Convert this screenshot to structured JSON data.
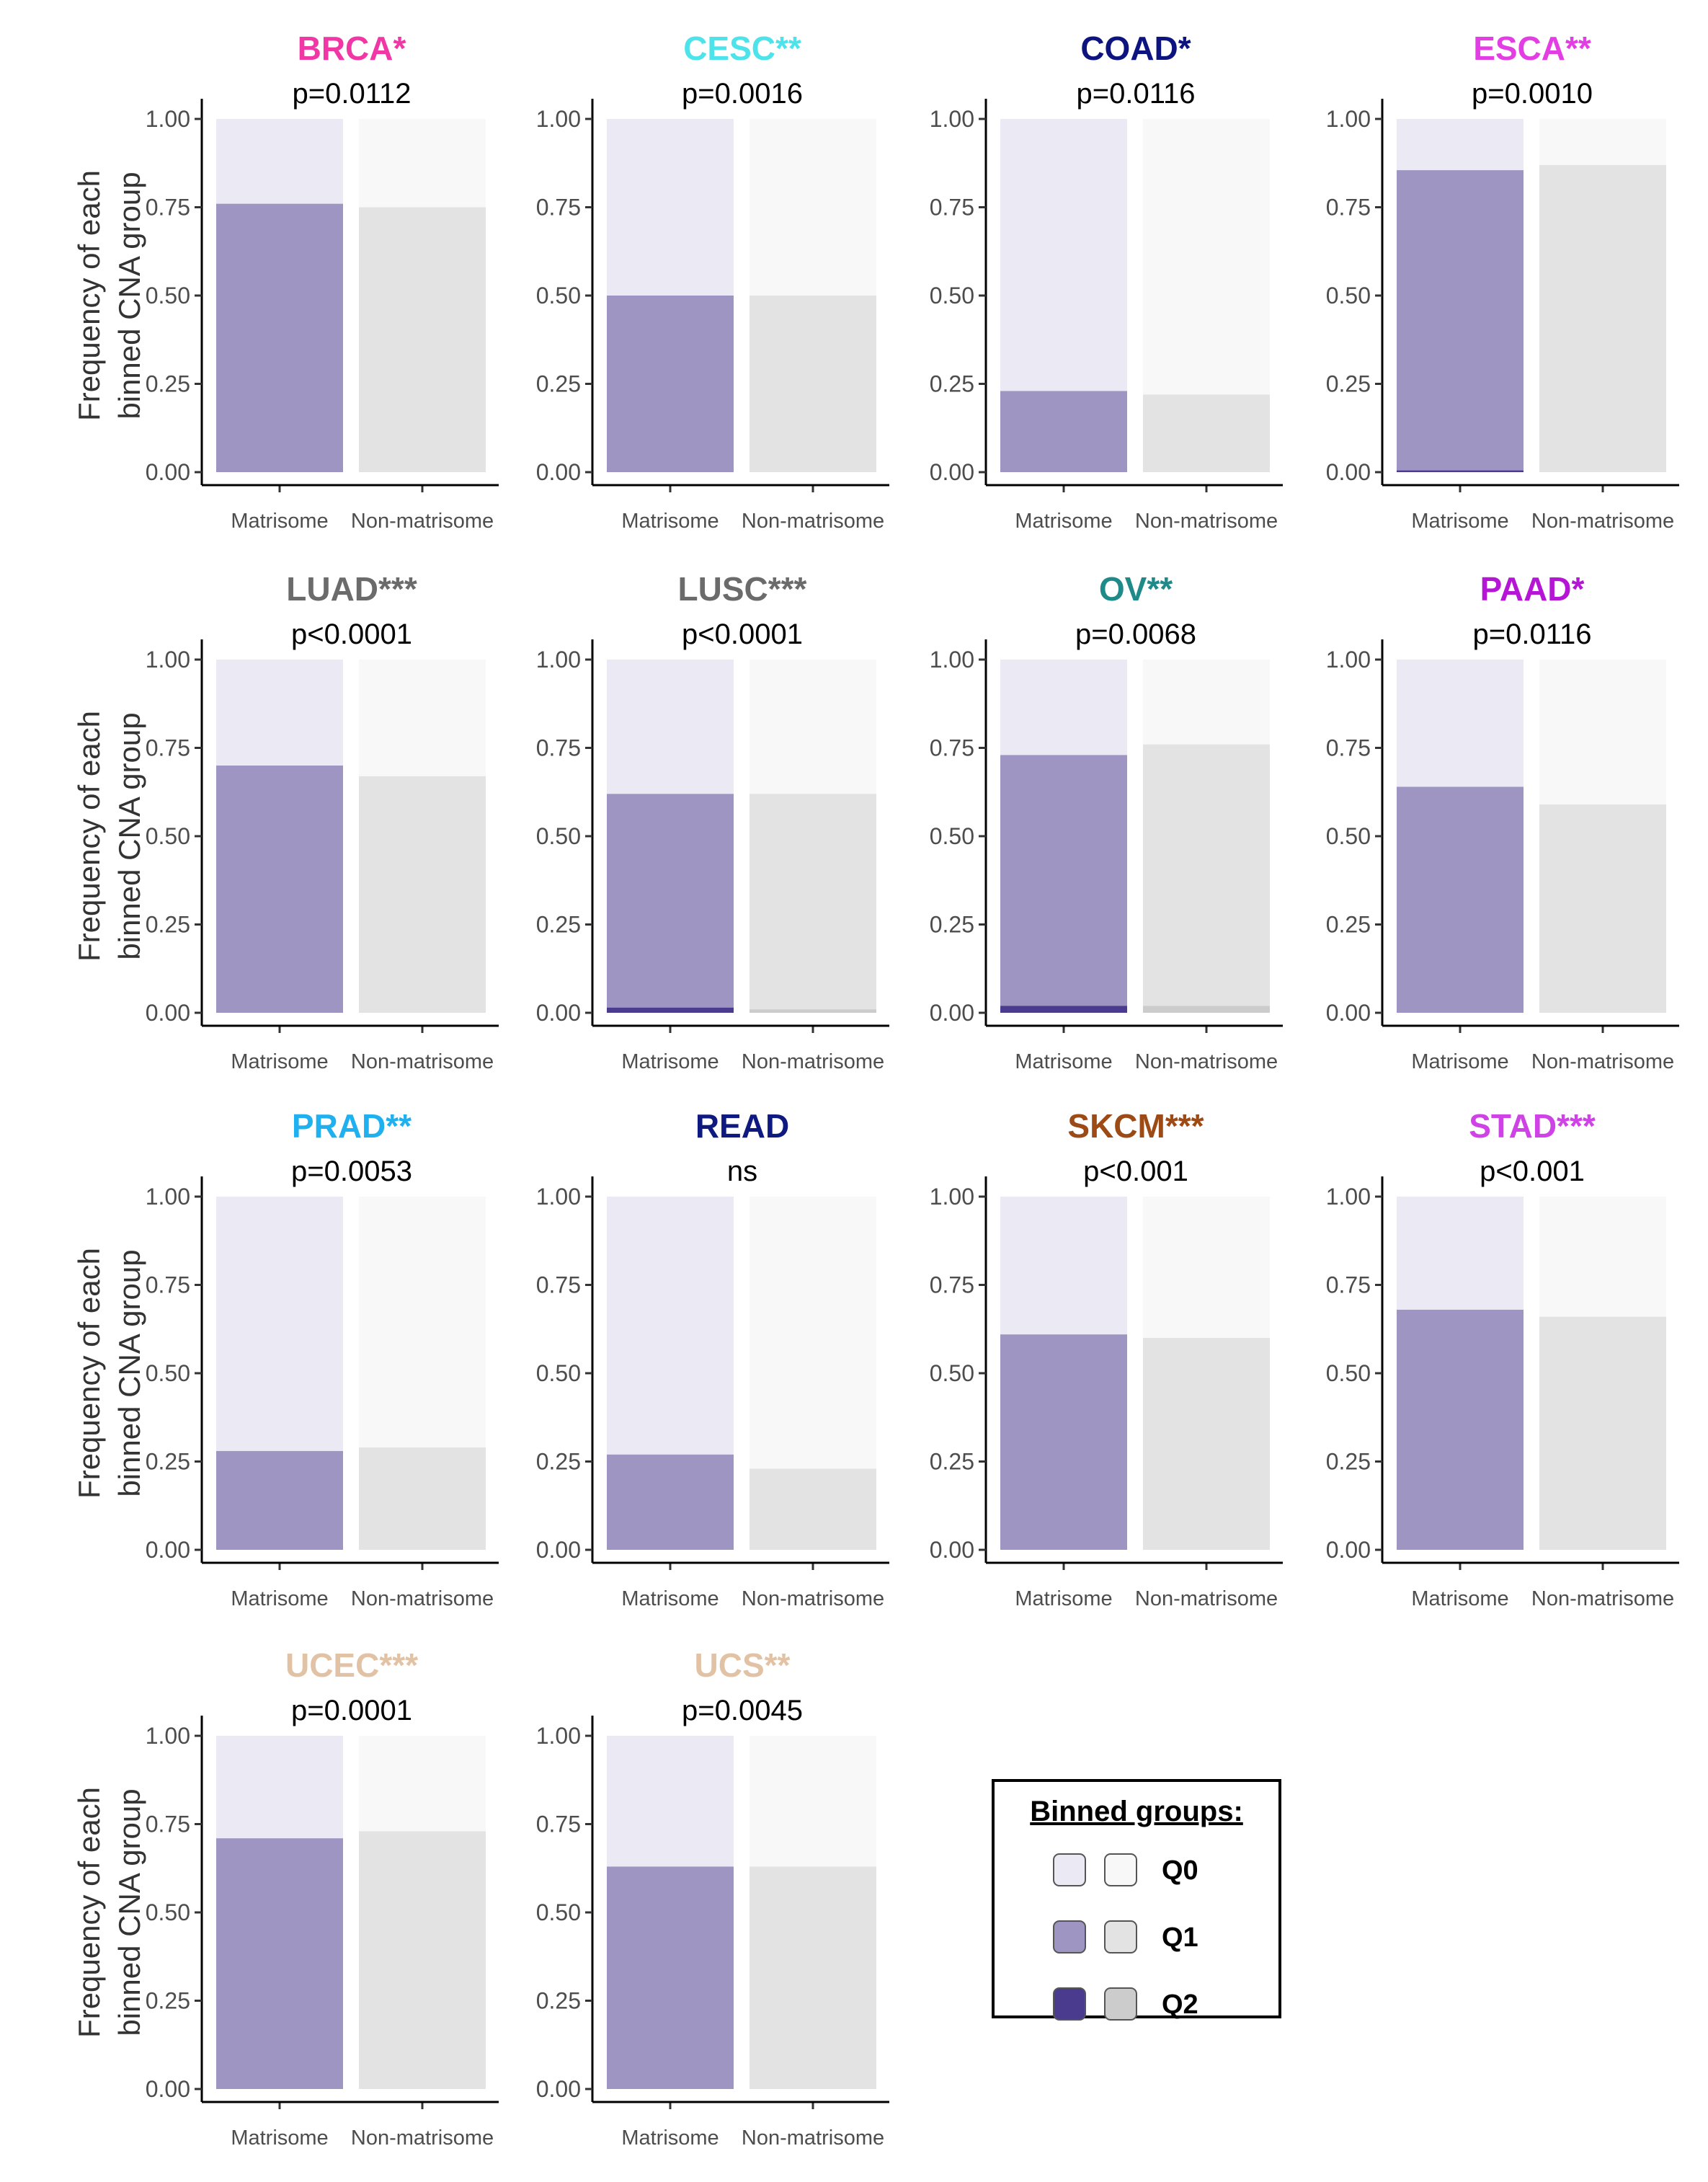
{
  "figure": {
    "y_axis_label_line1": "Frequency of each",
    "y_axis_label_line2": "binned CNA group"
  },
  "colors": {
    "matrisome": {
      "Q0": "#ebe9f4",
      "Q1": "#9f95c2",
      "Q2": "#4b3b8f"
    },
    "nonmatrisome": {
      "Q0": "#f8f8f8",
      "Q1": "#e3e3e3",
      "Q2": "#cccccc"
    }
  },
  "legend": {
    "title": "Binned groups:",
    "items": [
      {
        "label": "Q0",
        "matrisome_color": "#ebe9f4",
        "nonmatrisome_color": "#f8f8f8"
      },
      {
        "label": "Q1",
        "matrisome_color": "#9f95c2",
        "nonmatrisome_color": "#e3e3e3"
      },
      {
        "label": "Q2",
        "matrisome_color": "#4b3b8f",
        "nonmatrisome_color": "#cccccc"
      }
    ]
  },
  "chart_data": [
    {
      "type": "bar",
      "stacked": true,
      "title": "BRCA",
      "stars": "*",
      "title_color": "#f037a5",
      "pvalue": "p=0.0112",
      "categories": [
        "Matrisome",
        "Non-matrisome"
      ],
      "ylim": [
        0,
        1
      ],
      "yticks": [
        "0.00",
        "0.25",
        "0.50",
        "0.75",
        "1.00"
      ],
      "series": [
        {
          "name": "Q2",
          "values": [
            0.0,
            0.0
          ]
        },
        {
          "name": "Q1",
          "values": [
            0.76,
            0.75
          ]
        },
        {
          "name": "Q0",
          "values": [
            0.24,
            0.25
          ]
        }
      ]
    },
    {
      "type": "bar",
      "stacked": true,
      "title": "CESC",
      "stars": "**",
      "title_color": "#4de3ea",
      "pvalue": "p=0.0016",
      "categories": [
        "Matrisome",
        "Non-matrisome"
      ],
      "ylim": [
        0,
        1
      ],
      "yticks": [
        "0.00",
        "0.25",
        "0.50",
        "0.75",
        "1.00"
      ],
      "series": [
        {
          "name": "Q2",
          "values": [
            0.0,
            0.0
          ]
        },
        {
          "name": "Q1",
          "values": [
            0.5,
            0.5
          ]
        },
        {
          "name": "Q0",
          "values": [
            0.5,
            0.5
          ]
        }
      ]
    },
    {
      "type": "bar",
      "stacked": true,
      "title": "COAD",
      "stars": "*",
      "title_color": "#0d1480",
      "pvalue": "p=0.0116",
      "categories": [
        "Matrisome",
        "Non-matrisome"
      ],
      "ylim": [
        0,
        1
      ],
      "yticks": [
        "0.00",
        "0.25",
        "0.50",
        "0.75",
        "1.00"
      ],
      "series": [
        {
          "name": "Q2",
          "values": [
            0.0,
            0.0
          ]
        },
        {
          "name": "Q1",
          "values": [
            0.23,
            0.22
          ]
        },
        {
          "name": "Q0",
          "values": [
            0.77,
            0.78
          ]
        }
      ]
    },
    {
      "type": "bar",
      "stacked": true,
      "title": "ESCA",
      "stars": "**",
      "title_color": "#e33ee3",
      "pvalue": "p=0.0010",
      "categories": [
        "Matrisome",
        "Non-matrisome"
      ],
      "ylim": [
        0,
        1
      ],
      "yticks": [
        "0.00",
        "0.25",
        "0.50",
        "0.75",
        "1.00"
      ],
      "series": [
        {
          "name": "Q2",
          "values": [
            0.005,
            0.0
          ]
        },
        {
          "name": "Q1",
          "values": [
            0.85,
            0.87
          ]
        },
        {
          "name": "Q0",
          "values": [
            0.145,
            0.13
          ]
        }
      ]
    },
    {
      "type": "bar",
      "stacked": true,
      "title": "LUAD",
      "stars": "***",
      "title_color": "#6b6b6b",
      "pvalue": "p<0.0001",
      "categories": [
        "Matrisome",
        "Non-matrisome"
      ],
      "ylim": [
        0,
        1
      ],
      "yticks": [
        "0.00",
        "0.25",
        "0.50",
        "0.75",
        "1.00"
      ],
      "series": [
        {
          "name": "Q2",
          "values": [
            0.0,
            0.0
          ]
        },
        {
          "name": "Q1",
          "values": [
            0.7,
            0.67
          ]
        },
        {
          "name": "Q0",
          "values": [
            0.3,
            0.33
          ]
        }
      ]
    },
    {
      "type": "bar",
      "stacked": true,
      "title": "LUSC",
      "stars": "***",
      "title_color": "#6b6b6b",
      "pvalue": "p<0.0001",
      "categories": [
        "Matrisome",
        "Non-matrisome"
      ],
      "ylim": [
        0,
        1
      ],
      "yticks": [
        "0.00",
        "0.25",
        "0.50",
        "0.75",
        "1.00"
      ],
      "series": [
        {
          "name": "Q2",
          "values": [
            0.015,
            0.01
          ]
        },
        {
          "name": "Q1",
          "values": [
            0.605,
            0.61
          ]
        },
        {
          "name": "Q0",
          "values": [
            0.38,
            0.38
          ]
        }
      ]
    },
    {
      "type": "bar",
      "stacked": true,
      "title": "OV",
      "stars": "**",
      "title_color": "#1f8a8a",
      "pvalue": "p=0.0068",
      "categories": [
        "Matrisome",
        "Non-matrisome"
      ],
      "ylim": [
        0,
        1
      ],
      "yticks": [
        "0.00",
        "0.25",
        "0.50",
        "0.75",
        "1.00"
      ],
      "series": [
        {
          "name": "Q2",
          "values": [
            0.02,
            0.02
          ]
        },
        {
          "name": "Q1",
          "values": [
            0.71,
            0.74
          ]
        },
        {
          "name": "Q0",
          "values": [
            0.27,
            0.24
          ]
        }
      ]
    },
    {
      "type": "bar",
      "stacked": true,
      "title": "PAAD",
      "stars": "*",
      "title_color": "#b516d6",
      "pvalue": "p=0.0116",
      "categories": [
        "Matrisome",
        "Non-matrisome"
      ],
      "ylim": [
        0,
        1
      ],
      "yticks": [
        "0.00",
        "0.25",
        "0.50",
        "0.75",
        "1.00"
      ],
      "series": [
        {
          "name": "Q2",
          "values": [
            0.0,
            0.0
          ]
        },
        {
          "name": "Q1",
          "values": [
            0.64,
            0.59
          ]
        },
        {
          "name": "Q0",
          "values": [
            0.36,
            0.41
          ]
        }
      ]
    },
    {
      "type": "bar",
      "stacked": true,
      "title": "PRAD",
      "stars": "**",
      "title_color": "#1fb0f0",
      "pvalue": "p=0.0053",
      "categories": [
        "Matrisome",
        "Non-matrisome"
      ],
      "ylim": [
        0,
        1
      ],
      "yticks": [
        "0.00",
        "0.25",
        "0.50",
        "0.75",
        "1.00"
      ],
      "series": [
        {
          "name": "Q2",
          "values": [
            0.0,
            0.0
          ]
        },
        {
          "name": "Q1",
          "values": [
            0.28,
            0.29
          ]
        },
        {
          "name": "Q0",
          "values": [
            0.72,
            0.71
          ]
        }
      ]
    },
    {
      "type": "bar",
      "stacked": true,
      "title": "READ",
      "stars": "",
      "title_color": "#0f1a80",
      "pvalue": "ns",
      "categories": [
        "Matrisome",
        "Non-matrisome"
      ],
      "ylim": [
        0,
        1
      ],
      "yticks": [
        "0.00",
        "0.25",
        "0.50",
        "0.75",
        "1.00"
      ],
      "series": [
        {
          "name": "Q2",
          "values": [
            0.0,
            0.0
          ]
        },
        {
          "name": "Q1",
          "values": [
            0.27,
            0.23
          ]
        },
        {
          "name": "Q0",
          "values": [
            0.73,
            0.77
          ]
        }
      ]
    },
    {
      "type": "bar",
      "stacked": true,
      "title": "SKCM",
      "stars": "***",
      "title_color": "#9c4a16",
      "pvalue": "p<0.001",
      "categories": [
        "Matrisome",
        "Non-matrisome"
      ],
      "ylim": [
        0,
        1
      ],
      "yticks": [
        "0.00",
        "0.25",
        "0.50",
        "0.75",
        "1.00"
      ],
      "series": [
        {
          "name": "Q2",
          "values": [
            0.0,
            0.0
          ]
        },
        {
          "name": "Q1",
          "values": [
            0.61,
            0.6
          ]
        },
        {
          "name": "Q0",
          "values": [
            0.39,
            0.4
          ]
        }
      ]
    },
    {
      "type": "bar",
      "stacked": true,
      "title": "STAD",
      "stars": "***",
      "title_color": "#cf42e6",
      "pvalue": "p<0.001",
      "categories": [
        "Matrisome",
        "Non-matrisome"
      ],
      "ylim": [
        0,
        1
      ],
      "yticks": [
        "0.00",
        "0.25",
        "0.50",
        "0.75",
        "1.00"
      ],
      "series": [
        {
          "name": "Q2",
          "values": [
            0.0,
            0.0
          ]
        },
        {
          "name": "Q1",
          "values": [
            0.68,
            0.66
          ]
        },
        {
          "name": "Q0",
          "values": [
            0.32,
            0.34
          ]
        }
      ]
    },
    {
      "type": "bar",
      "stacked": true,
      "title": "UCEC",
      "stars": "***",
      "title_color": "#e2c2a4",
      "pvalue": "p=0.0001",
      "categories": [
        "Matrisome",
        "Non-matrisome"
      ],
      "ylim": [
        0,
        1
      ],
      "yticks": [
        "0.00",
        "0.25",
        "0.50",
        "0.75",
        "1.00"
      ],
      "series": [
        {
          "name": "Q2",
          "values": [
            0.0,
            0.0
          ]
        },
        {
          "name": "Q1",
          "values": [
            0.71,
            0.73
          ]
        },
        {
          "name": "Q0",
          "values": [
            0.29,
            0.27
          ]
        }
      ]
    },
    {
      "type": "bar",
      "stacked": true,
      "title": "UCS",
      "stars": "**",
      "title_color": "#e2c2a4",
      "pvalue": "p=0.0045",
      "categories": [
        "Matrisome",
        "Non-matrisome"
      ],
      "ylim": [
        0,
        1
      ],
      "yticks": [
        "0.00",
        "0.25",
        "0.50",
        "0.75",
        "1.00"
      ],
      "series": [
        {
          "name": "Q2",
          "values": [
            0.0,
            0.0
          ]
        },
        {
          "name": "Q1",
          "values": [
            0.63,
            0.63
          ]
        },
        {
          "name": "Q0",
          "values": [
            0.37,
            0.37
          ]
        }
      ]
    }
  ]
}
